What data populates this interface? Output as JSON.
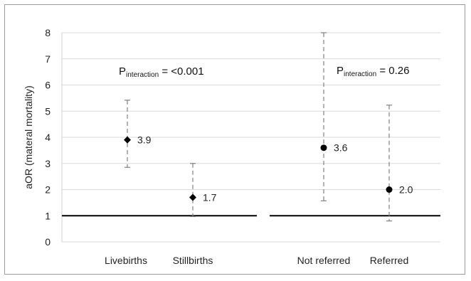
{
  "chart_data": {
    "type": "scatter",
    "ylabel": "aOR (materal mortality)",
    "ylim": [
      0,
      8
    ],
    "yticks": [
      "0",
      "1",
      "2",
      "3",
      "4",
      "5",
      "6",
      "7",
      "8"
    ],
    "grid": true,
    "reference_line": 1,
    "groups": [
      {
        "annotation": {
          "main": "P",
          "sub": "interaction",
          "rest": " = <0.001"
        },
        "marker": "diamond",
        "points": [
          {
            "category": "Livebirths",
            "value": 3.9,
            "label": "3.9",
            "ci_low": 2.85,
            "ci_high": 5.42
          },
          {
            "category": "Stillbirths",
            "value": 1.7,
            "label": "1.7",
            "ci_low": 0.97,
            "ci_high": 3.0
          }
        ]
      },
      {
        "annotation": {
          "main": "P",
          "sub": "interaction",
          "rest": " = 0.26"
        },
        "marker": "circle",
        "points": [
          {
            "category": "Not referred",
            "value": 3.6,
            "label": "3.6",
            "ci_low": 1.57,
            "ci_high": 8.0
          },
          {
            "category": "Referred",
            "value": 2.0,
            "label": "2.0",
            "ci_low": 0.8,
            "ci_high": 5.23
          }
        ]
      }
    ]
  },
  "colors": {
    "grid": "#d9d9d9",
    "axis": "#000000",
    "marker": "#000000",
    "errorbar": "#808080"
  }
}
